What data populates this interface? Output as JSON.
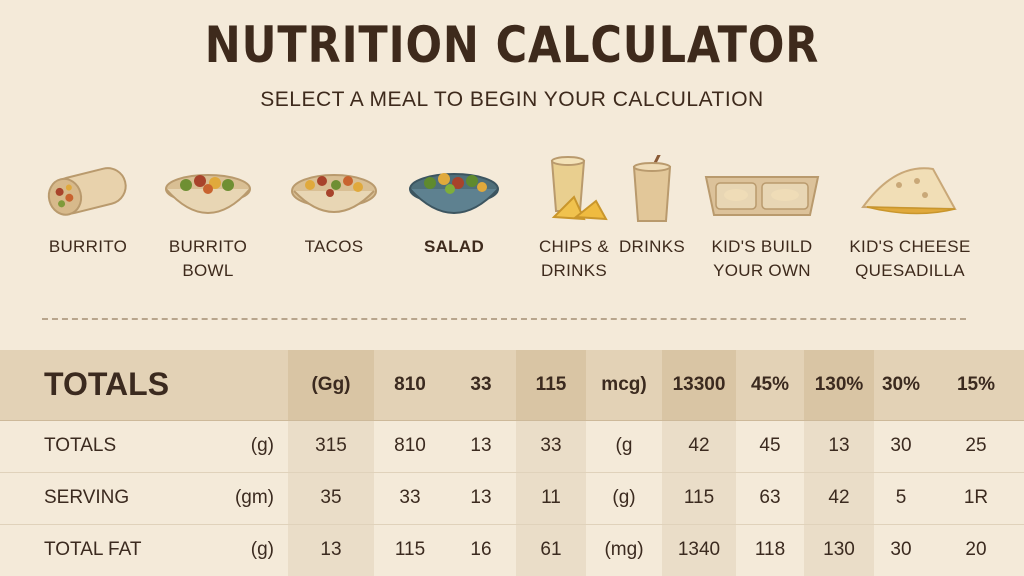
{
  "header": {
    "title": "NUTRITION CALCULATOR",
    "subtitle": "SELECT A MEAL TO BEGIN YOUR CALCULATION"
  },
  "meals": [
    {
      "label": "BURRITO",
      "icon": "burrito-icon",
      "selected": false
    },
    {
      "label": "BURRITO\nBOWL",
      "icon": "bowl-icon",
      "selected": false
    },
    {
      "label": "TACOS",
      "icon": "tacos-icon",
      "selected": false
    },
    {
      "label": "SALAD",
      "icon": "salad-icon",
      "selected": true
    },
    {
      "label": "CHIPS &\nDRINKS",
      "icon": "chips-drink-icon",
      "selected": false
    },
    {
      "label": "DRINKS",
      "icon": "drink-cup-icon",
      "selected": false
    },
    {
      "label": "KID'S BUILD\nYOUR OWN",
      "icon": "kids-tray-icon",
      "selected": false
    },
    {
      "label": "KID'S CHEESE\nQUESADILLA",
      "icon": "quesadilla-icon",
      "selected": false
    }
  ],
  "table": {
    "header": {
      "name": "TOTALS",
      "cells": [
        "(Gg)",
        "810",
        "33",
        "115",
        "mcg)",
        "13300",
        "45%",
        "130%",
        "30%",
        "15%"
      ]
    },
    "rows": [
      {
        "name": "TOTALS",
        "unit": "(g)",
        "cells": [
          "315",
          "810",
          "13",
          "33",
          "(g",
          "42",
          "45",
          "13",
          "30",
          "25"
        ]
      },
      {
        "name": "SERVING",
        "unit": "(gm)",
        "cells": [
          "35",
          "33",
          "13",
          "11",
          "(g)",
          "115",
          "63",
          "42",
          "5",
          "1R"
        ]
      },
      {
        "name": "TOTAL FAT",
        "unit": "(g)",
        "cells": [
          "13",
          "115",
          "16",
          "61",
          "(mg)",
          "1340",
          "118",
          "130",
          "30",
          "20"
        ]
      }
    ]
  },
  "colors": {
    "background": "#f4ead9",
    "header_band": "#e3d2b6",
    "text": "#3b2a1f"
  }
}
